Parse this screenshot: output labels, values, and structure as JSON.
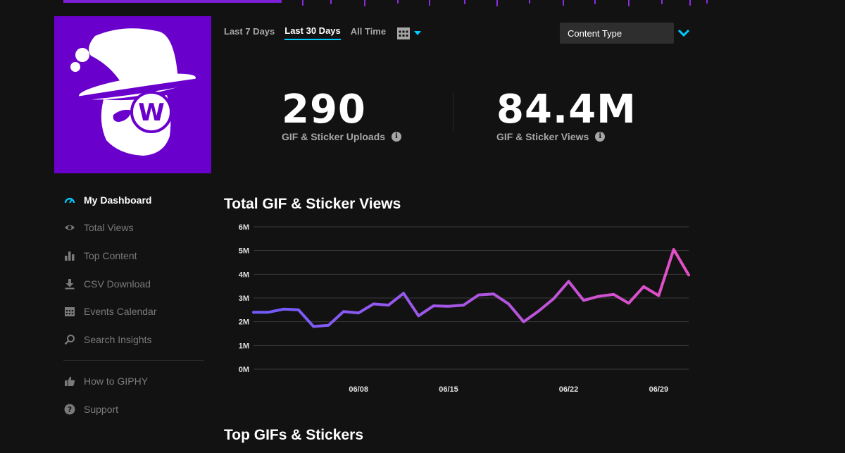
{
  "nav": {
    "items": [
      {
        "label": "My Dashboard",
        "icon": "gauge-icon",
        "active": true
      },
      {
        "label": "Total Views",
        "icon": "eye-icon"
      },
      {
        "label": "Top Content",
        "icon": "bar-chart-icon"
      },
      {
        "label": "CSV Download",
        "icon": "download-icon"
      },
      {
        "label": "Events Calendar",
        "icon": "calendar-icon"
      },
      {
        "label": "Search Insights",
        "icon": "search-icon"
      },
      {
        "label": "How to GIPHY",
        "icon": "thumbs-up-icon"
      },
      {
        "label": "Support",
        "icon": "help-icon"
      }
    ]
  },
  "tabs": [
    {
      "label": "Last 7 Days",
      "active": false
    },
    {
      "label": "Last 30 Days",
      "active": true
    },
    {
      "label": "All Time",
      "active": false
    }
  ],
  "filter": {
    "label": "Content Type"
  },
  "stats": {
    "uploads": {
      "value": "290",
      "label": "GIF & Sticker Uploads"
    },
    "views": {
      "value": "84.4M",
      "label": "GIF & Sticker Views"
    }
  },
  "sections": {
    "chart_title": "Total GIF & Sticker Views",
    "top_title": "Top GIFs & Stickers"
  },
  "colors": {
    "accent": "#00ccff",
    "brand_purple": "#6a00cc",
    "line_start": "#6f5cff",
    "line_end": "#e64fc4"
  },
  "chart_data": {
    "type": "line",
    "title": "Total GIF & Sticker Views",
    "xlabel": "",
    "ylabel": "",
    "ylim": [
      0,
      6
    ],
    "y_ticks": [
      "0M",
      "1M",
      "2M",
      "3M",
      "4M",
      "5M",
      "6M"
    ],
    "x_ticks": [
      "06/08",
      "06/15",
      "06/22",
      "06/29"
    ],
    "grid": true,
    "series": [
      {
        "values": [
          2.4,
          2.4,
          2.53,
          2.5,
          1.8,
          1.85,
          2.43,
          2.37,
          2.75,
          2.7,
          3.2,
          2.25,
          2.67,
          2.65,
          2.7,
          3.13,
          3.17,
          2.75,
          2.0,
          2.45,
          2.97,
          3.7,
          2.9,
          3.07,
          3.15,
          2.78,
          3.48,
          3.1,
          5.05,
          3.97
        ]
      }
    ]
  }
}
